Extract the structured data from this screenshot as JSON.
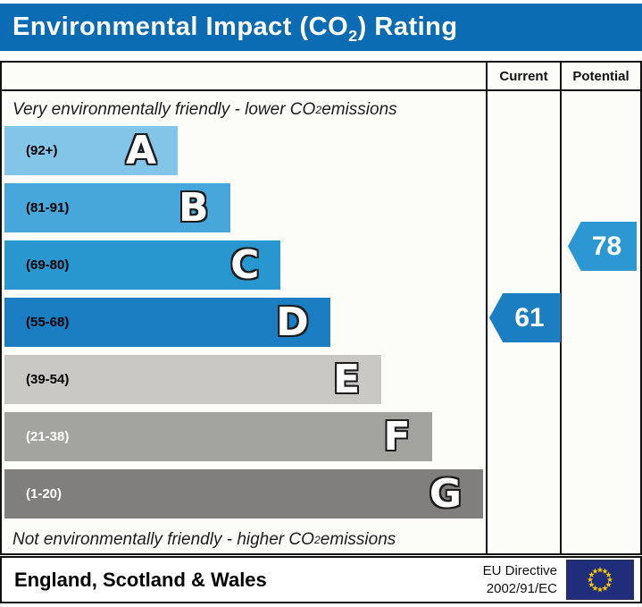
{
  "header": {
    "title_prefix": "Environmental Impact (CO",
    "title_sub": "2",
    "title_suffix": ") Rating",
    "bg_color": "#0c6cb3"
  },
  "columns": {
    "current": "Current",
    "potential": "Potential"
  },
  "scale_top_note": {
    "prefix": "Very environmentally friendly - lower CO",
    "sub": "2",
    "suffix": " emissions"
  },
  "scale_bottom_note": {
    "prefix": "Not environmentally friendly - higher CO",
    "sub": "2",
    "suffix": " emissions"
  },
  "chart_data": {
    "type": "bar",
    "title": "Environmental Impact (CO2) Rating",
    "bands": [
      {
        "letter": "A",
        "range_label": "(92+)",
        "range": [
          92,
          100
        ],
        "color": "#82c5e9",
        "width_pct": 35.8,
        "label_color": "#000000"
      },
      {
        "letter": "B",
        "range_label": "(81-91)",
        "range": [
          81,
          91
        ],
        "color": "#47a7da",
        "width_pct": 46.6,
        "label_color": "#000000"
      },
      {
        "letter": "C",
        "range_label": "(69-80)",
        "range": [
          69,
          80
        ],
        "color": "#2897cf",
        "width_pct": 57.1,
        "label_color": "#000000"
      },
      {
        "letter": "D",
        "range_label": "(55-68)",
        "range": [
          55,
          68
        ],
        "color": "#1b7ec2",
        "width_pct": 67.3,
        "label_color": "#000000"
      },
      {
        "letter": "E",
        "range_label": "(39-54)",
        "range": [
          39,
          54
        ],
        "color": "#c9c8c5",
        "width_pct": 77.9,
        "label_color": "#000000"
      },
      {
        "letter": "F",
        "range_label": "(21-38)",
        "range": [
          21,
          38
        ],
        "color": "#a3a3a0",
        "width_pct": 88.3,
        "label_color": "#ffffff"
      },
      {
        "letter": "G",
        "range_label": "(1-20)",
        "range": [
          1,
          20
        ],
        "color": "#807f7d",
        "width_pct": 98.9,
        "label_color": "#ffffff"
      }
    ],
    "current": {
      "value": 61,
      "band": "D",
      "color": "#1b7ec2"
    },
    "potential": {
      "value": 78,
      "band": "C",
      "color": "#2b98d3"
    }
  },
  "footer": {
    "region": "England, Scotland & Wales",
    "directive_line1": "EU Directive",
    "directive_line2": "2002/91/EC",
    "flag_blue": "#1f2d7a",
    "flag_star_color": "#ffcc00"
  }
}
